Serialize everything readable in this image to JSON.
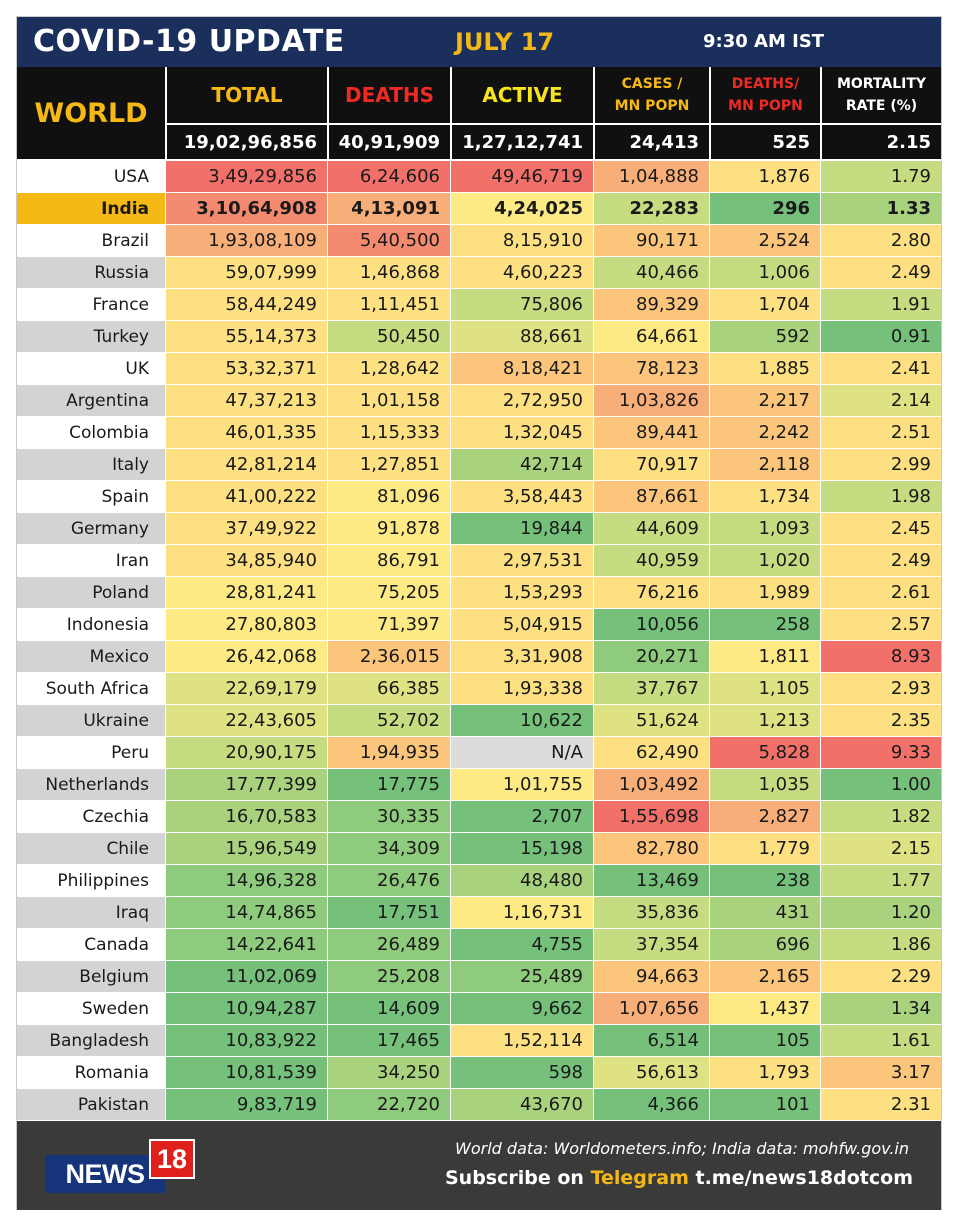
{
  "title": {
    "main": "COVID-19 UPDATE",
    "date": "JULY 17",
    "time": "9:30 AM IST"
  },
  "world": {
    "label": "WORLD",
    "headers": [
      {
        "line1": "TOTAL",
        "line2": "",
        "color": "#f5b915"
      },
      {
        "line1": "DEATHS",
        "line2": "",
        "color": "#ee2a24"
      },
      {
        "line1": "ACTIVE",
        "line2": "",
        "color": "#f7e41a"
      },
      {
        "line1": "CASES /",
        "line2": "MN POPN",
        "color": "#f5b915"
      },
      {
        "line1": "DEATHS/",
        "line2": "MN POPN",
        "color": "#ee2a24"
      },
      {
        "line1": "MORTALITY",
        "line2": "RATE (%)",
        "color": "#ffffff"
      }
    ],
    "totals": [
      "19,02,96,856",
      "40,91,909",
      "1,27,12,741",
      "24,413",
      "525",
      "2.15"
    ]
  },
  "colors": {
    "title_bg": "#1b2f5c",
    "header_bg": "#101010",
    "highlight_row": "#f5b915",
    "band_white": "#ffffff",
    "band_grey": "#d3d3d6",
    "na": "#dcdcdc",
    "scale": {
      "r": "#f1706a",
      "R": "#f48a6f",
      "o": "#f8ae78",
      "O": "#fbc57c",
      "y": "#fde081",
      "Y": "#fdea85",
      "l": "#dfe283",
      "L": "#c6dc81",
      "g": "#a9d27f",
      "G": "#8fcb7d",
      "k": "#75c07a"
    }
  },
  "rows": [
    {
      "country": "USA",
      "band": "w",
      "values": [
        "3,49,29,856",
        "6,24,606",
        "49,46,719",
        "1,04,888",
        "1,876",
        "1.79"
      ],
      "shade": [
        "r",
        "r",
        "r",
        "o",
        "y",
        "L"
      ]
    },
    {
      "country": "India",
      "band": "h",
      "values": [
        "3,10,64,908",
        "4,13,091",
        "4,24,025",
        "22,283",
        "296",
        "1.33"
      ],
      "shade": [
        "R",
        "o",
        "Y",
        "L",
        "k",
        "g"
      ]
    },
    {
      "country": "Brazil",
      "band": "w",
      "values": [
        "1,93,08,109",
        "5,40,500",
        "8,15,910",
        "90,171",
        "2,524",
        "2.80"
      ],
      "shade": [
        "o",
        "R",
        "y",
        "O",
        "O",
        "y"
      ]
    },
    {
      "country": "Russia",
      "band": "g",
      "values": [
        "59,07,999",
        "1,46,868",
        "4,60,223",
        "40,466",
        "1,006",
        "2.49"
      ],
      "shade": [
        "y",
        "y",
        "y",
        "L",
        "L",
        "y"
      ]
    },
    {
      "country": "France",
      "band": "w",
      "values": [
        "58,44,249",
        "1,11,451",
        "75,806",
        "89,329",
        "1,704",
        "1.91"
      ],
      "shade": [
        "y",
        "y",
        "L",
        "O",
        "y",
        "L"
      ]
    },
    {
      "country": "Turkey",
      "band": "g",
      "values": [
        "55,14,373",
        "50,450",
        "88,661",
        "64,661",
        "592",
        "0.91"
      ],
      "shade": [
        "y",
        "L",
        "l",
        "Y",
        "g",
        "k"
      ]
    },
    {
      "country": "UK",
      "band": "w",
      "values": [
        "53,32,371",
        "1,28,642",
        "8,18,421",
        "78,123",
        "1,885",
        "2.41"
      ],
      "shade": [
        "y",
        "y",
        "O",
        "O",
        "y",
        "y"
      ]
    },
    {
      "country": "Argentina",
      "band": "g",
      "values": [
        "47,37,213",
        "1,01,158",
        "2,72,950",
        "1,03,826",
        "2,217",
        "2.14"
      ],
      "shade": [
        "y",
        "y",
        "y",
        "o",
        "O",
        "l"
      ]
    },
    {
      "country": "Colombia",
      "band": "w",
      "values": [
        "46,01,335",
        "1,15,333",
        "1,32,045",
        "89,441",
        "2,242",
        "2.51"
      ],
      "shade": [
        "y",
        "y",
        "y",
        "O",
        "O",
        "y"
      ]
    },
    {
      "country": "Italy",
      "band": "g",
      "values": [
        "42,81,214",
        "1,27,851",
        "42,714",
        "70,917",
        "2,118",
        "2.99"
      ],
      "shade": [
        "y",
        "y",
        "g",
        "y",
        "O",
        "y"
      ]
    },
    {
      "country": "Spain",
      "band": "w",
      "values": [
        "41,00,222",
        "81,096",
        "3,58,443",
        "87,661",
        "1,734",
        "1.98"
      ],
      "shade": [
        "y",
        "Y",
        "y",
        "O",
        "y",
        "L"
      ]
    },
    {
      "country": "Germany",
      "band": "g",
      "values": [
        "37,49,922",
        "91,878",
        "19,844",
        "44,609",
        "1,093",
        "2.45"
      ],
      "shade": [
        "y",
        "Y",
        "k",
        "L",
        "L",
        "y"
      ]
    },
    {
      "country": "Iran",
      "band": "w",
      "values": [
        "34,85,940",
        "86,791",
        "2,97,531",
        "40,959",
        "1,020",
        "2.49"
      ],
      "shade": [
        "y",
        "Y",
        "y",
        "L",
        "L",
        "y"
      ]
    },
    {
      "country": "Poland",
      "band": "g",
      "values": [
        "28,81,241",
        "75,205",
        "1,53,293",
        "76,216",
        "1,989",
        "2.61"
      ],
      "shade": [
        "Y",
        "Y",
        "y",
        "y",
        "y",
        "y"
      ]
    },
    {
      "country": "Indonesia",
      "band": "w",
      "values": [
        "27,80,803",
        "71,397",
        "5,04,915",
        "10,056",
        "258",
        "2.57"
      ],
      "shade": [
        "Y",
        "Y",
        "y",
        "k",
        "k",
        "y"
      ]
    },
    {
      "country": "Mexico",
      "band": "g",
      "values": [
        "26,42,068",
        "2,36,015",
        "3,31,908",
        "20,271",
        "1,811",
        "8.93"
      ],
      "shade": [
        "Y",
        "O",
        "y",
        "G",
        "Y",
        "r"
      ]
    },
    {
      "country": "South Africa",
      "band": "w",
      "values": [
        "22,69,179",
        "66,385",
        "1,93,338",
        "37,767",
        "1,105",
        "2.93"
      ],
      "shade": [
        "l",
        "l",
        "y",
        "L",
        "l",
        "y"
      ]
    },
    {
      "country": "Ukraine",
      "band": "g",
      "values": [
        "22,43,605",
        "52,702",
        "10,622",
        "51,624",
        "1,213",
        "2.35"
      ],
      "shade": [
        "l",
        "L",
        "k",
        "l",
        "l",
        "y"
      ]
    },
    {
      "country": "Peru",
      "band": "w",
      "values": [
        "20,90,175",
        "1,94,935",
        "N/A",
        "62,490",
        "5,828",
        "9.33"
      ],
      "shade": [
        "L",
        "O",
        "n",
        "y",
        "r",
        "r"
      ]
    },
    {
      "country": "Netherlands",
      "band": "g",
      "values": [
        "17,77,399",
        "17,775",
        "1,01,755",
        "1,03,492",
        "1,035",
        "1.00"
      ],
      "shade": [
        "g",
        "k",
        "Y",
        "o",
        "L",
        "k"
      ]
    },
    {
      "country": "Czechia",
      "band": "w",
      "values": [
        "16,70,583",
        "30,335",
        "2,707",
        "1,55,698",
        "2,827",
        "1.82"
      ],
      "shade": [
        "g",
        "G",
        "k",
        "r",
        "o",
        "L"
      ]
    },
    {
      "country": "Chile",
      "band": "g",
      "values": [
        "15,96,549",
        "34,309",
        "15,198",
        "82,780",
        "1,779",
        "2.15"
      ],
      "shade": [
        "g",
        "G",
        "k",
        "O",
        "y",
        "l"
      ]
    },
    {
      "country": "Philippines",
      "band": "w",
      "values": [
        "14,96,328",
        "26,476",
        "48,480",
        "13,469",
        "238",
        "1.77"
      ],
      "shade": [
        "G",
        "G",
        "g",
        "k",
        "k",
        "L"
      ]
    },
    {
      "country": "Iraq",
      "band": "g",
      "values": [
        "14,74,865",
        "17,751",
        "1,16,731",
        "35,836",
        "431",
        "1.20"
      ],
      "shade": [
        "G",
        "k",
        "Y",
        "L",
        "g",
        "g"
      ]
    },
    {
      "country": "Canada",
      "band": "w",
      "values": [
        "14,22,641",
        "26,489",
        "4,755",
        "37,354",
        "696",
        "1.86"
      ],
      "shade": [
        "G",
        "G",
        "k",
        "L",
        "g",
        "L"
      ]
    },
    {
      "country": "Belgium",
      "band": "g",
      "values": [
        "11,02,069",
        "25,208",
        "25,489",
        "94,663",
        "2,165",
        "2.29"
      ],
      "shade": [
        "k",
        "G",
        "G",
        "O",
        "O",
        "y"
      ]
    },
    {
      "country": "Sweden",
      "band": "w",
      "values": [
        "10,94,287",
        "14,609",
        "9,662",
        "1,07,656",
        "1,437",
        "1.34"
      ],
      "shade": [
        "k",
        "k",
        "k",
        "o",
        "Y",
        "g"
      ]
    },
    {
      "country": "Bangladesh",
      "band": "g",
      "values": [
        "10,83,922",
        "17,465",
        "1,52,114",
        "6,514",
        "105",
        "1.61"
      ],
      "shade": [
        "k",
        "k",
        "y",
        "k",
        "k",
        "L"
      ]
    },
    {
      "country": "Romania",
      "band": "w",
      "values": [
        "10,81,539",
        "34,250",
        "598",
        "56,613",
        "1,793",
        "3.17"
      ],
      "shade": [
        "k",
        "g",
        "k",
        "l",
        "y",
        "O"
      ]
    },
    {
      "country": "Pakistan",
      "band": "g",
      "values": [
        "9,83,719",
        "22,720",
        "43,670",
        "4,366",
        "101",
        "2.31"
      ],
      "shade": [
        "k",
        "G",
        "g",
        "k",
        "k",
        "y"
      ]
    }
  ],
  "footer": {
    "source": "World data: Worldometers.info; India data: mohfw.gov.in",
    "subscribe_prefix": "Subscribe on",
    "subscribe_platform": "Telegram",
    "subscribe_link": "t.me/news18dotcom",
    "logo_word": "NEWS",
    "logo_number": "18"
  }
}
